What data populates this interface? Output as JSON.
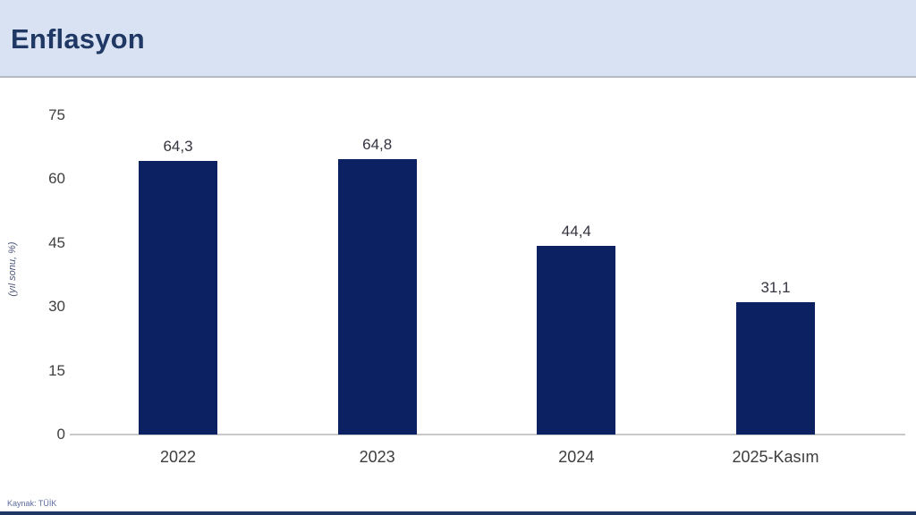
{
  "header": {
    "title": "Enflasyon"
  },
  "footer": {
    "source": "Kaynak: TÜİK"
  },
  "chart_data": {
    "type": "bar",
    "title": "Enflasyon",
    "xlabel": "",
    "ylabel": "(yıl sonu, %)",
    "categories": [
      "2022",
      "2023",
      "2024",
      "2025-Kasım"
    ],
    "values": [
      64.3,
      64.8,
      44.4,
      31.1
    ],
    "value_labels": [
      "64,3",
      "64,8",
      "44,4",
      "31,1"
    ],
    "yticks": [
      0,
      15,
      30,
      45,
      60,
      75
    ],
    "ylim": [
      0,
      75
    ],
    "grid": false,
    "legend": "none",
    "source": "Kaynak: TÜİK"
  },
  "colors": {
    "header_bg": "#d9e2f3",
    "title_text": "#1f3864",
    "bar": "#0b2161",
    "axis_line": "#c9c9c9",
    "tick_text": "#404040",
    "accent_bottom": "#1f3864"
  }
}
